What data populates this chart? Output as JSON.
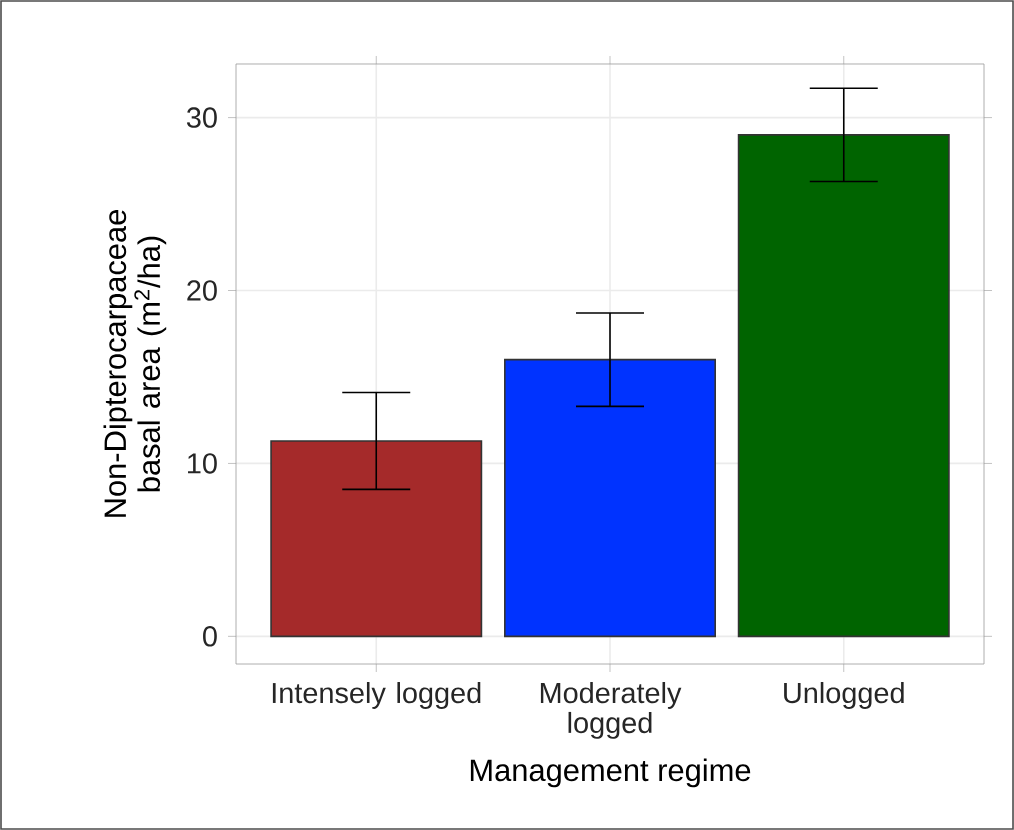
{
  "chart_data": {
    "type": "bar",
    "xlabel": "Management regime",
    "ylabel": "Non-Dipterocarpaceae basal area (m$^{2}$/ha)",
    "categories": [
      "Intensely logged",
      "Moderately logged",
      "Unlogged"
    ],
    "values": [
      11.3,
      16.0,
      29.0
    ],
    "errors": [
      2.8,
      2.7,
      2.7
    ],
    "colors": [
      "#a52a2a",
      "#0033ff",
      "#006400"
    ],
    "ylim": [
      -1.6,
      33.1
    ],
    "yticks": [
      0,
      10,
      20,
      30
    ],
    "grid": true
  }
}
